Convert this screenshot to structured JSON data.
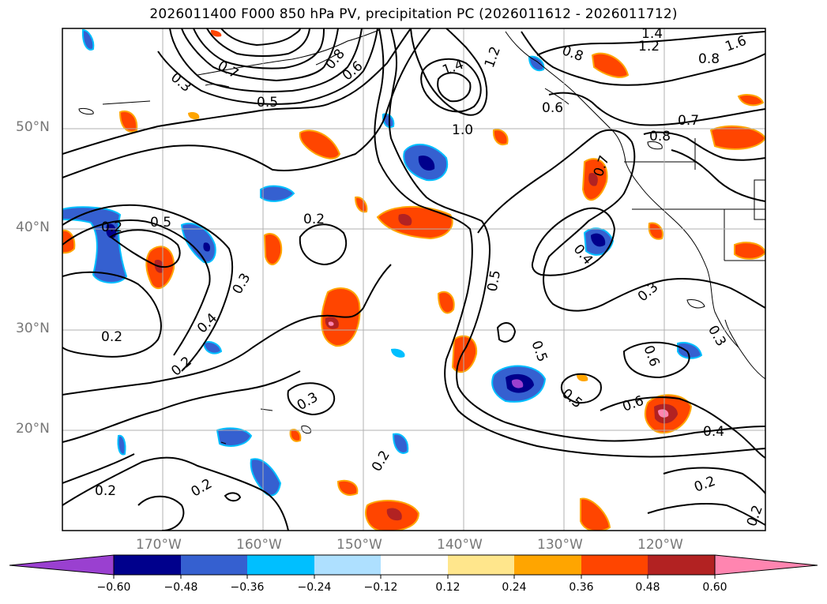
{
  "title": "2026011400 F000 850 hPa PV, precipitation PC (2026011612 - 2026011712)",
  "lat_labels": [
    "50°N",
    "40°N",
    "30°N",
    "20°N"
  ],
  "lon_labels": [
    "170°W",
    "160°W",
    "150°W",
    "140°W",
    "130°W",
    "120°W"
  ],
  "colorbar": {
    "ticks": [
      "−0.60",
      "−0.48",
      "−0.36",
      "−0.24",
      "−0.12",
      "0.12",
      "0.24",
      "0.36",
      "0.48",
      "0.60"
    ],
    "colors": [
      "#9a40d0",
      "#00008c",
      "#3560d0",
      "#00bfff",
      "#aee0ff",
      "#ffffff",
      "#ffe68c",
      "#ffa500",
      "#ff4500",
      "#b22222",
      "#ff85b0"
    ]
  },
  "contour_labels": [
    "0.2",
    "0.5",
    "0.3",
    "0.4",
    "0.6",
    "0.7",
    "0.8",
    "1.0",
    "1.2",
    "1.4",
    "1.6"
  ],
  "colors": {
    "frame": "#000000",
    "grid": "#b0b0b0",
    "coast": "#000000",
    "contour": "#000000"
  }
}
